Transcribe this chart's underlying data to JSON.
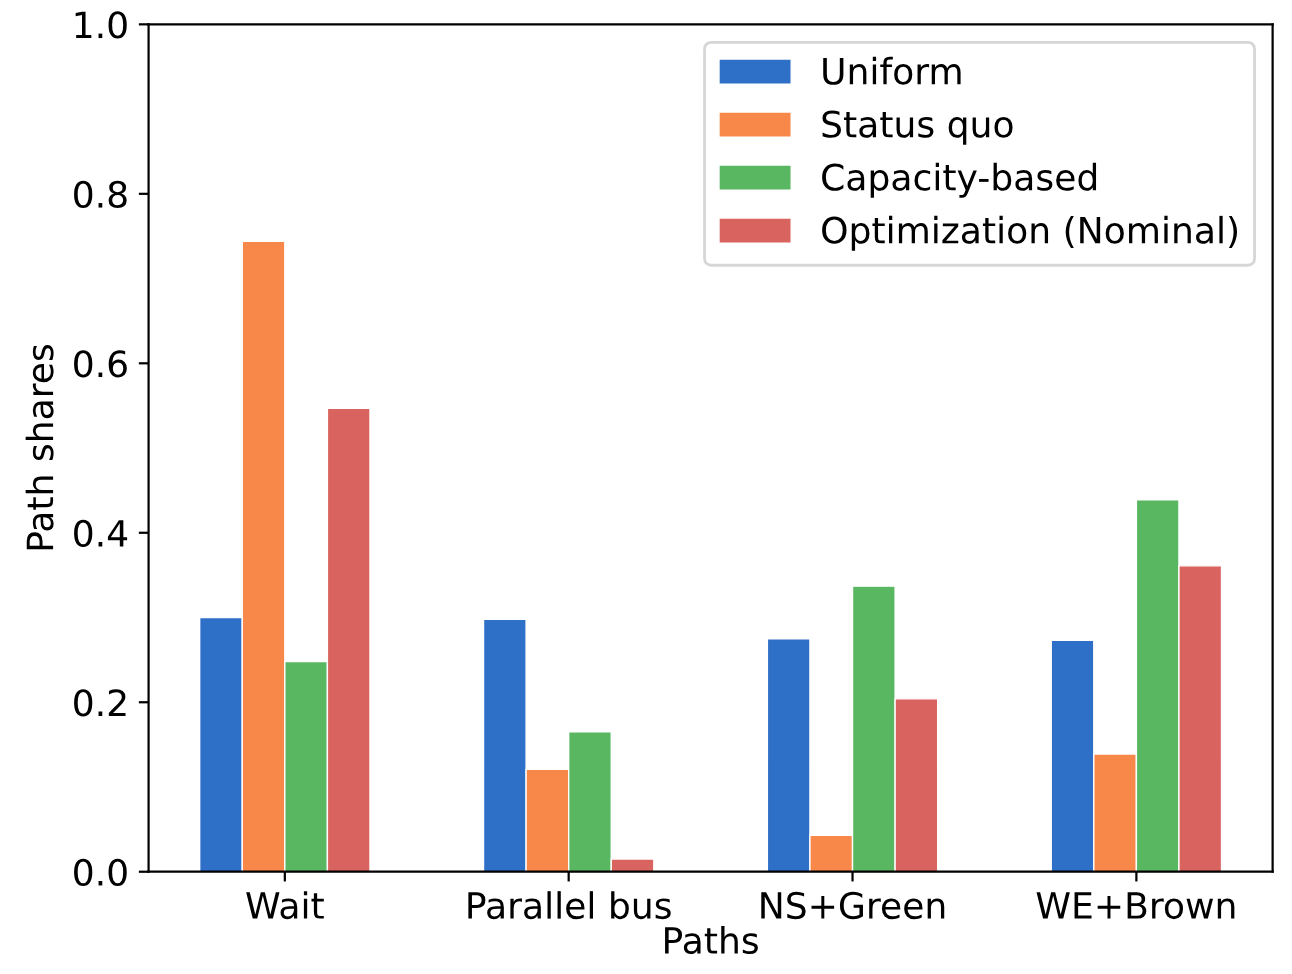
{
  "chart_data": {
    "type": "bar",
    "xlabel": "Paths",
    "ylabel": "Path shares",
    "categories": [
      "Wait",
      "Parallel bus",
      "NS+Green",
      "WE+Brown"
    ],
    "series": [
      {
        "name": "Uniform",
        "color": "#2e6fc7",
        "values": [
          0.3,
          0.298,
          0.275,
          0.273
        ]
      },
      {
        "name": "Status quo",
        "color": "#f7884a",
        "values": [
          0.744,
          0.121,
          0.043,
          0.139
        ]
      },
      {
        "name": "Capacity-based",
        "color": "#58b760",
        "values": [
          0.248,
          0.165,
          0.337,
          0.439
        ]
      },
      {
        "name": "Optimization (Nominal)",
        "color": "#d9635f",
        "values": [
          0.547,
          0.015,
          0.204,
          0.361
        ]
      }
    ],
    "ylim": [
      0,
      1.0
    ],
    "yticks": [
      {
        "value": 0,
        "label": "0.0"
      },
      {
        "value": 0.2,
        "label": "0.2"
      },
      {
        "value": 0.4,
        "label": "0.4"
      },
      {
        "value": 0.6,
        "label": "0.6"
      },
      {
        "value": 0.8,
        "label": "0.8"
      },
      {
        "value": 1.0,
        "label": "1.0"
      }
    ],
    "grid": false,
    "legend": "top right"
  }
}
